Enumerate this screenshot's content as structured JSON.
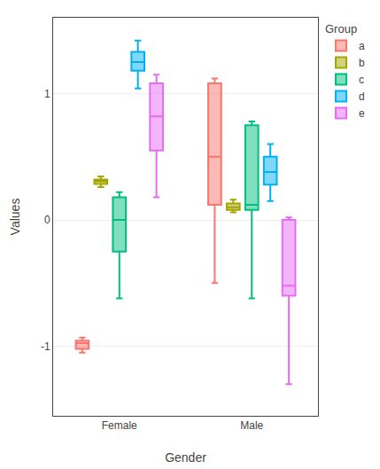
{
  "chart_data": {
    "type": "box",
    "xlabel": "Gender",
    "ylabel": "Values",
    "legend_title": "Group",
    "categories": [
      "Female",
      "Male"
    ],
    "series": [
      {
        "name": "a",
        "color": "#F8766D",
        "q1": [
          -1.02,
          0.12
        ],
        "median": [
          -0.975,
          0.5
        ],
        "q3": [
          -0.955,
          1.08
        ],
        "whislo": [
          -1.05,
          -0.5
        ],
        "whishi": [
          -0.93,
          1.12
        ]
      },
      {
        "name": "b",
        "color": "#A3A500",
        "q1": [
          0.285,
          0.08
        ],
        "median": [
          0.305,
          0.1
        ],
        "q3": [
          0.32,
          0.13
        ],
        "whislo": [
          0.26,
          0.06
        ],
        "whishi": [
          0.345,
          0.16
        ]
      },
      {
        "name": "c",
        "color": "#00BF7D",
        "q1": [
          -0.25,
          0.08
        ],
        "median": [
          0.0,
          0.12
        ],
        "q3": [
          0.18,
          0.75
        ],
        "whislo": [
          -0.62,
          -0.62
        ],
        "whishi": [
          0.22,
          0.78
        ]
      },
      {
        "name": "d",
        "color": "#00B0F6",
        "q1": [
          1.18,
          0.28
        ],
        "median": [
          1.25,
          0.38
        ],
        "q3": [
          1.33,
          0.5
        ],
        "whislo": [
          1.04,
          0.15
        ],
        "whishi": [
          1.42,
          0.6
        ]
      },
      {
        "name": "e",
        "color": "#E76BF3",
        "q1": [
          0.55,
          -0.6
        ],
        "median": [
          0.82,
          -0.52
        ],
        "q3": [
          1.08,
          0.0
        ],
        "whislo": [
          0.18,
          -1.3
        ],
        "whishi": [
          1.15,
          0.02
        ]
      }
    ],
    "ylim": [
      -1.55,
      1.6
    ],
    "yticks": [
      -1,
      0,
      1
    ],
    "grid": true,
    "legend": "right"
  }
}
